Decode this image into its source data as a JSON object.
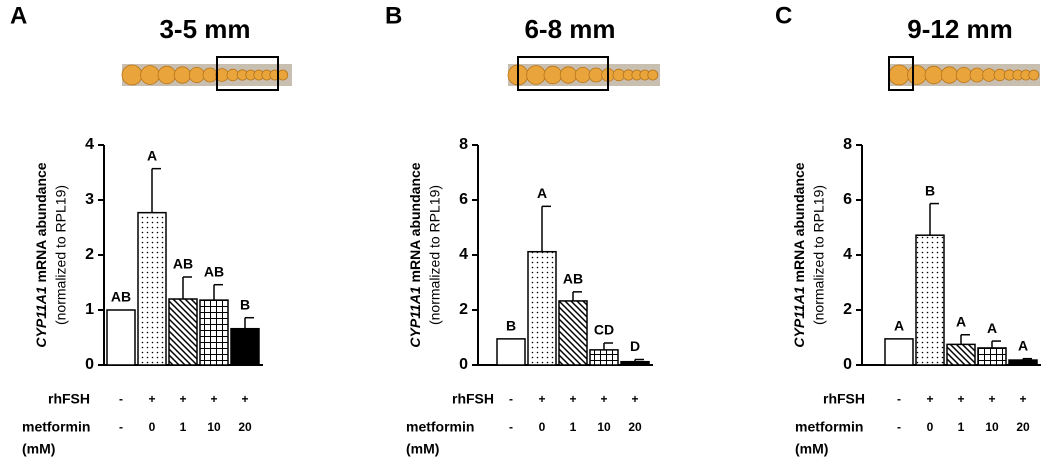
{
  "chart_data": [
    {
      "type": "bar",
      "panel": "A",
      "title": "3-5 mm",
      "ylabel_gene": "CYP11A1",
      "ylabel": "mRNA abundance",
      "ylabel_note": "(normalized to RPL19)",
      "values": [
        1.0,
        2.77,
        1.2,
        1.18,
        0.66
      ],
      "errors": [
        null,
        0.8,
        0.4,
        0.28,
        0.2
      ],
      "letters": [
        "AB",
        "A",
        "AB",
        "AB",
        "B"
      ],
      "ylim": [
        0,
        4
      ],
      "yticks": [
        0,
        1,
        2,
        3,
        4
      ],
      "rows": [
        {
          "name": "rhFSH",
          "values": [
            "-",
            "+",
            "+",
            "+",
            "+"
          ]
        },
        {
          "name": "metformin",
          "values": [
            "-",
            "0",
            "1",
            "10",
            "20"
          ]
        }
      ],
      "row_unit": "(mM)"
    },
    {
      "type": "bar",
      "panel": "B",
      "title": "6-8 mm",
      "ylabel_gene": "CYP11A1",
      "ylabel": "mRNA abundance",
      "ylabel_note": "(normalized to RPL19)",
      "values": [
        0.95,
        4.12,
        2.33,
        0.55,
        0.12
      ],
      "errors": [
        null,
        1.65,
        0.33,
        0.25,
        0.08
      ],
      "letters": [
        "B",
        "A",
        "AB",
        "CD",
        "D"
      ],
      "ylim": [
        0,
        8
      ],
      "yticks": [
        0,
        2,
        4,
        6,
        8
      ],
      "rows": [
        {
          "name": "rhFSH",
          "values": [
            "-",
            "+",
            "+",
            "+",
            "+"
          ]
        },
        {
          "name": "metformin",
          "values": [
            "-",
            "0",
            "1",
            "10",
            "20"
          ]
        }
      ],
      "row_unit": "(mM)"
    },
    {
      "type": "bar",
      "panel": "C",
      "title": "9-12 mm",
      "ylabel_gene": "CYP11A1",
      "ylabel": "mRNA abundance",
      "ylabel_note": "(normalized to RPL19)",
      "values": [
        0.95,
        4.72,
        0.75,
        0.62,
        0.18
      ],
      "errors": [
        null,
        1.15,
        0.35,
        0.25,
        0.05
      ],
      "letters": [
        "A",
        "B",
        "A",
        "A",
        "A"
      ],
      "ylim": [
        0,
        8
      ],
      "yticks": [
        0,
        2,
        4,
        6,
        8
      ],
      "rows": [
        {
          "name": "rhFSH",
          "values": [
            "-",
            "+",
            "+",
            "+",
            "+"
          ]
        },
        {
          "name": "metformin",
          "values": [
            "-",
            "0",
            "1",
            "10",
            "20"
          ]
        }
      ],
      "row_unit": "(mM)"
    }
  ]
}
